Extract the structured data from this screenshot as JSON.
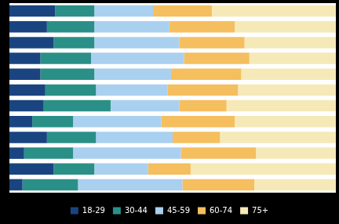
{
  "chart_data": {
    "type": "bar",
    "orientation": "horizontal",
    "stacked": true,
    "categories": [
      null,
      null,
      null,
      null,
      null,
      null,
      null,
      null,
      null,
      null,
      null,
      null
    ],
    "series": [
      {
        "name": "18-29",
        "color": "#1a4480",
        "values": [
          14.0,
          11.5,
          13.5,
          9.5,
          9.5,
          11.0,
          10.5,
          7.0,
          11.5,
          4.5,
          13.5,
          4.0
        ]
      },
      {
        "name": "30-44",
        "color": "#2a9087",
        "values": [
          12.0,
          14.5,
          12.5,
          15.5,
          16.5,
          15.5,
          20.5,
          12.5,
          15.0,
          15.0,
          12.5,
          17.0
        ]
      },
      {
        "name": "45-59",
        "color": "#aad0f0",
        "values": [
          18.0,
          23.0,
          26.0,
          28.5,
          23.5,
          22.0,
          21.0,
          27.0,
          23.5,
          33.0,
          16.5,
          32.0
        ]
      },
      {
        "name": "60-74",
        "color": "#f5be5e",
        "values": [
          18.0,
          20.0,
          20.0,
          20.0,
          21.5,
          21.5,
          14.5,
          22.5,
          14.5,
          23.0,
          13.0,
          22.0
        ]
      },
      {
        "name": "75+",
        "color": "#f5e9b8",
        "values": [
          38.0,
          31.0,
          28.0,
          26.5,
          29.0,
          30.0,
          33.5,
          31.0,
          35.5,
          24.5,
          44.5,
          25.0
        ]
      }
    ],
    "xlim": [
      0,
      100
    ],
    "xticks": [],
    "tick_labels": false,
    "grid": false,
    "legend": "bottom"
  }
}
